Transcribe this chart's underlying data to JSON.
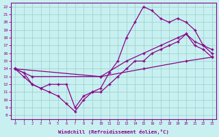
{
  "xlabel": "Windchill (Refroidissement éolien,°C)",
  "xlim": [
    -0.5,
    23.5
  ],
  "ylim": [
    7.5,
    22.5
  ],
  "xticks": [
    0,
    1,
    2,
    3,
    4,
    5,
    6,
    7,
    8,
    9,
    10,
    11,
    12,
    13,
    14,
    15,
    16,
    17,
    18,
    19,
    20,
    21,
    22,
    23
  ],
  "yticks": [
    8,
    9,
    10,
    11,
    12,
    13,
    14,
    15,
    16,
    17,
    18,
    19,
    20,
    21,
    22
  ],
  "bg_color": "#c8f0f0",
  "line_color": "#880088",
  "grid_color": "#99cccc",
  "lines": [
    {
      "x": [
        0,
        10,
        15,
        20,
        23
      ],
      "y": [
        14,
        13,
        14,
        15,
        15.5
      ]
    },
    {
      "x": [
        0,
        2,
        10,
        13,
        15,
        17,
        19,
        20,
        21,
        22,
        23
      ],
      "y": [
        14,
        13,
        13,
        15,
        16,
        17,
        18,
        18.5,
        17.5,
        17,
        16.5
      ]
    },
    {
      "x": [
        0,
        1,
        2,
        3,
        4,
        5,
        6,
        7,
        8,
        9,
        10,
        11,
        12,
        13,
        14,
        15,
        16,
        17,
        18,
        19,
        20,
        21,
        22,
        23
      ],
      "y": [
        14,
        13,
        12,
        11.5,
        11,
        10.5,
        9.5,
        8.5,
        10,
        11,
        11.5,
        13.5,
        15,
        18,
        20,
        22,
        21.5,
        20.5,
        20,
        20.5,
        20,
        19,
        17,
        16
      ]
    },
    {
      "x": [
        0,
        1,
        2,
        3,
        4,
        5,
        6,
        7,
        8,
        9,
        10,
        11,
        12,
        13,
        14,
        15,
        16,
        17,
        18,
        19,
        20,
        21,
        22,
        23
      ],
      "y": [
        14,
        13.5,
        12,
        11.5,
        12,
        12,
        12,
        9,
        10.5,
        11,
        11,
        12,
        13,
        14,
        15,
        15,
        16,
        16.5,
        17,
        17.5,
        18.5,
        17,
        16.5,
        15.5
      ]
    }
  ]
}
